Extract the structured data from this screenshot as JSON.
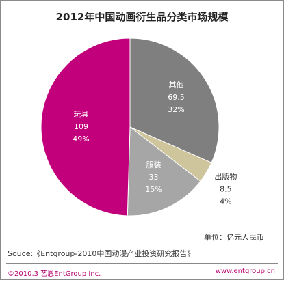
{
  "chart_data": {
    "type": "pie",
    "title": "2012年中国动画衍生品分类市场规模",
    "unit_note": "单位：亿元人民币",
    "start_angle_deg": 0,
    "direction": "clockwise",
    "slices": [
      {
        "name": "其他",
        "value": 69.5,
        "percent": "32%",
        "color": "#7f7f7f",
        "label_color": "#ffffff"
      },
      {
        "name": "出版物",
        "value": 8.5,
        "percent": "4%",
        "color": "#cfc59c",
        "label_color": "#333333"
      },
      {
        "name": "服装",
        "value": 33,
        "percent": "15%",
        "color": "#a6a6a6",
        "label_color": "#ffffff"
      },
      {
        "name": "玩具",
        "value": 109,
        "percent": "49%",
        "color": "#c2007b",
        "label_color": "#ffffff"
      }
    ]
  },
  "source": "Souce:《Entgroup-2010中国动漫产业投资研究报告》",
  "footer": {
    "copyright": "©2010.3  艺恩EntGroup Inc.",
    "url": "www.entgroup.cn"
  }
}
